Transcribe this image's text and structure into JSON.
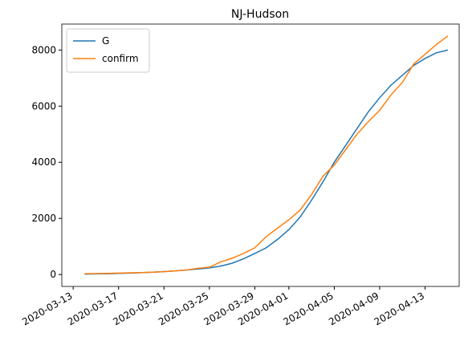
{
  "chart_data": {
    "type": "line",
    "title": "NJ-Hudson",
    "x": [
      "2020-03-14",
      "2020-03-15",
      "2020-03-16",
      "2020-03-17",
      "2020-03-18",
      "2020-03-19",
      "2020-03-20",
      "2020-03-21",
      "2020-03-22",
      "2020-03-23",
      "2020-03-24",
      "2020-03-25",
      "2020-03-26",
      "2020-03-27",
      "2020-03-28",
      "2020-03-29",
      "2020-03-30",
      "2020-03-31",
      "2020-04-01",
      "2020-04-02",
      "2020-04-03",
      "2020-04-04",
      "2020-04-05",
      "2020-04-06",
      "2020-04-07",
      "2020-04-08",
      "2020-04-09",
      "2020-04-10",
      "2020-04-11",
      "2020-04-12",
      "2020-04-13",
      "2020-04-14",
      "2020-04-15"
    ],
    "series": [
      {
        "name": "G",
        "color": "#1f77b4",
        "values": [
          15,
          20,
          28,
          38,
          50,
          65,
          82,
          105,
          130,
          160,
          195,
          235,
          300,
          400,
          560,
          750,
          950,
          1250,
          1600,
          2050,
          2650,
          3300,
          4000,
          4600,
          5200,
          5800,
          6300,
          6750,
          7100,
          7450,
          7700,
          7900,
          8000
        ]
      },
      {
        "name": "confirm",
        "color": "#ff7f0e",
        "values": [
          30,
          33,
          40,
          50,
          60,
          70,
          85,
          100,
          130,
          160,
          220,
          260,
          450,
          580,
          750,
          950,
          1350,
          1650,
          1950,
          2300,
          2850,
          3500,
          3900,
          4450,
          5000,
          5450,
          5850,
          6400,
          6850,
          7500,
          7850,
          8200,
          8500
        ]
      }
    ],
    "xlim": [
      "2020-03-12",
      "2020-04-16"
    ],
    "xticks": [
      "2020-03-13",
      "2020-03-17",
      "2020-03-21",
      "2020-03-25",
      "2020-03-29",
      "2020-04-01",
      "2020-04-05",
      "2020-04-09",
      "2020-04-13"
    ],
    "ylim": [
      -425,
      8925
    ],
    "yticks": [
      0,
      2000,
      4000,
      6000,
      8000
    ],
    "legend": "upper left"
  }
}
